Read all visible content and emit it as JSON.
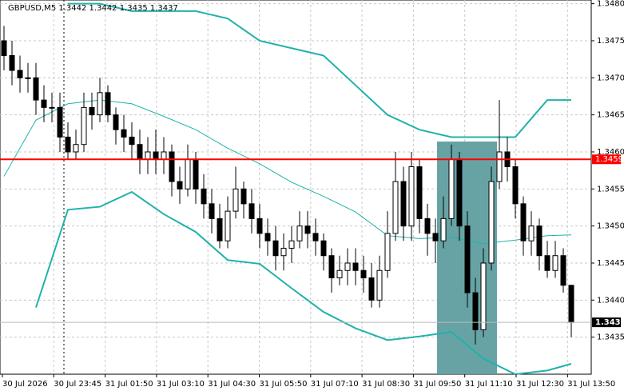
{
  "chart_data": {
    "type": "candlestick",
    "title": "GBPUSD,M5  1.3442 1.3442 1.3435 1.3437",
    "ylim": [
      1.343,
      1.34805
    ],
    "yticks": [
      {
        "value": 1.348,
        "label": "1.3480"
      },
      1.3475,
      {
        "value": 1.347,
        "label": "1.3470"
      },
      1.3465,
      {
        "value": 1.346,
        "label": "1.3460"
      },
      1.3455,
      {
        "value": 1.345,
        "label": "1.3450"
      },
      1.3445,
      {
        "value": 1.344,
        "label": "1.3440"
      },
      1.3435
    ],
    "x_tick_labels": [
      "30 Jul 2026",
      "30 Jul 23:45",
      "31 Jul 01:50",
      "31 Jul 03:10",
      "31 Jul 04:30",
      "31 Jul 05:50",
      "31 Jul 07:10",
      "31 Jul 08:30",
      "31 Jul 09:50",
      "31 Jul 11:10",
      "31 Jul 12:30",
      "31 Jul 13:50"
    ],
    "grid": true,
    "candle_color": "#000000",
    "open": [
      1.3475,
      1.3473,
      1.3471,
      1.347,
      1.347,
      1.3467,
      1.3466,
      1.3466,
      1.3462,
      1.346,
      1.3461,
      1.3466,
      1.3465,
      1.3468,
      1.3465,
      1.3463,
      1.3462,
      1.3461,
      1.3459,
      1.346,
      1.3459,
      1.346,
      1.3456,
      1.3455,
      1.3459,
      1.3455,
      1.3453,
      1.3451,
      1.3448,
      1.3452,
      1.3455,
      1.3453,
      1.3451,
      1.3449,
      1.3448,
      1.3446,
      1.3447,
      1.3448,
      1.345,
      1.3449,
      1.3448,
      1.3446,
      1.3443,
      1.3444,
      1.3445,
      1.3444,
      1.3443,
      1.344,
      1.3444,
      1.3449,
      1.3456,
      1.345,
      1.3458,
      1.3451,
      1.3449,
      1.3448,
      1.3451,
      1.3459,
      1.345,
      1.3441,
      1.3436,
      1.3445,
      1.3456,
      1.346,
      1.3458,
      1.3453,
      1.3448,
      1.345,
      1.3446,
      1.3444,
      1.3446,
      1.3442
    ],
    "high": [
      1.3477,
      1.3475,
      1.3473,
      1.3472,
      1.3472,
      1.3469,
      1.3468,
      1.3468,
      1.3464,
      1.3463,
      1.3468,
      1.3468,
      1.347,
      1.3469,
      1.3466,
      1.3465,
      1.3464,
      1.3463,
      1.3462,
      1.3463,
      1.3462,
      1.3461,
      1.3458,
      1.3461,
      1.346,
      1.3457,
      1.3455,
      1.3453,
      1.3454,
      1.3458,
      1.3456,
      1.3455,
      1.3453,
      1.3451,
      1.345,
      1.3449,
      1.345,
      1.3452,
      1.3452,
      1.3451,
      1.3449,
      1.3447,
      1.3446,
      1.3447,
      1.3447,
      1.3446,
      1.3445,
      1.3446,
      1.3452,
      1.346,
      1.3458,
      1.346,
      1.3459,
      1.3453,
      1.3451,
      1.3454,
      1.3461,
      1.346,
      1.3452,
      1.3443,
      1.3447,
      1.3458,
      1.3467,
      1.3462,
      1.3459,
      1.3454,
      1.3452,
      1.3451,
      1.3448,
      1.3448,
      1.3447,
      1.3442
    ],
    "low": [
      1.3471,
      1.3469,
      1.3468,
      1.3468,
      1.3465,
      1.3464,
      1.3464,
      1.346,
      1.3459,
      1.3459,
      1.346,
      1.3463,
      1.3464,
      1.3464,
      1.3461,
      1.346,
      1.3459,
      1.3457,
      1.3457,
      1.3457,
      1.3457,
      1.3454,
      1.3453,
      1.3454,
      1.3453,
      1.3451,
      1.3449,
      1.3447,
      1.3447,
      1.3451,
      1.3451,
      1.3449,
      1.3447,
      1.3446,
      1.3444,
      1.3444,
      1.3445,
      1.3447,
      1.3447,
      1.3446,
      1.3444,
      1.3441,
      1.3442,
      1.3442,
      1.3442,
      1.3441,
      1.3439,
      1.3439,
      1.3443,
      1.3448,
      1.3448,
      1.3448,
      1.3449,
      1.3446,
      1.3445,
      1.3447,
      1.345,
      1.3448,
      1.3439,
      1.3434,
      1.3435,
      1.3444,
      1.3455,
      1.3456,
      1.3451,
      1.3446,
      1.3446,
      1.3444,
      1.3443,
      1.3443,
      1.3441,
      1.3435
    ],
    "close": [
      1.3473,
      1.3471,
      1.347,
      1.347,
      1.3467,
      1.3466,
      1.3466,
      1.3462,
      1.346,
      1.3461,
      1.3466,
      1.3465,
      1.3468,
      1.3465,
      1.3463,
      1.3462,
      1.3461,
      1.3459,
      1.346,
      1.3459,
      1.346,
      1.3456,
      1.3455,
      1.3459,
      1.3455,
      1.3453,
      1.3451,
      1.3448,
      1.3452,
      1.3455,
      1.3453,
      1.3451,
      1.3449,
      1.3448,
      1.3446,
      1.3447,
      1.3448,
      1.345,
      1.3449,
      1.3448,
      1.3446,
      1.3443,
      1.3444,
      1.3445,
      1.3444,
      1.3443,
      1.344,
      1.3444,
      1.3449,
      1.3456,
      1.345,
      1.3458,
      1.3451,
      1.3449,
      1.3448,
      1.3451,
      1.3459,
      1.345,
      1.3441,
      1.3436,
      1.3445,
      1.3456,
      1.346,
      1.3458,
      1.3453,
      1.3448,
      1.345,
      1.3446,
      1.3444,
      1.3446,
      1.3442,
      1.3437
    ],
    "bands_x": [
      0,
      4,
      8,
      12,
      16,
      20,
      24,
      28,
      32,
      36,
      40,
      44,
      48,
      52,
      56,
      60,
      64,
      68,
      71
    ],
    "bands": [
      {
        "color": "#20b2aa",
        "values": [
          null,
          null,
          1.348,
          1.348,
          1.3479,
          1.3479,
          1.3479,
          1.3478,
          1.3475,
          1.3474,
          1.3473,
          1.3469,
          1.3465,
          1.3463,
          1.3462,
          1.3462,
          1.3462,
          1.3467,
          1.3467
        ]
      },
      {
        "color": "#20b2aa",
        "values": [
          1.34567,
          1.34643,
          1.34665,
          1.3467,
          1.34665,
          1.34648,
          1.3463,
          1.34605,
          1.34584,
          1.34559,
          1.3454,
          1.34519,
          1.34487,
          1.34483,
          1.34485,
          1.34476,
          1.34481,
          1.34487,
          1.34488
        ]
      },
      {
        "color": "#20b2aa",
        "values": [
          null,
          1.3439,
          1.34522,
          1.34526,
          1.34546,
          1.34516,
          1.34492,
          1.34454,
          1.34449,
          1.34416,
          1.34384,
          1.34362,
          1.34346,
          1.34351,
          1.34357,
          1.34321,
          1.343,
          1.34305,
          1.34314
        ]
      }
    ],
    "level": 1.3459,
    "level_color": "#ff0000",
    "current_price": 1.3437
  }
}
